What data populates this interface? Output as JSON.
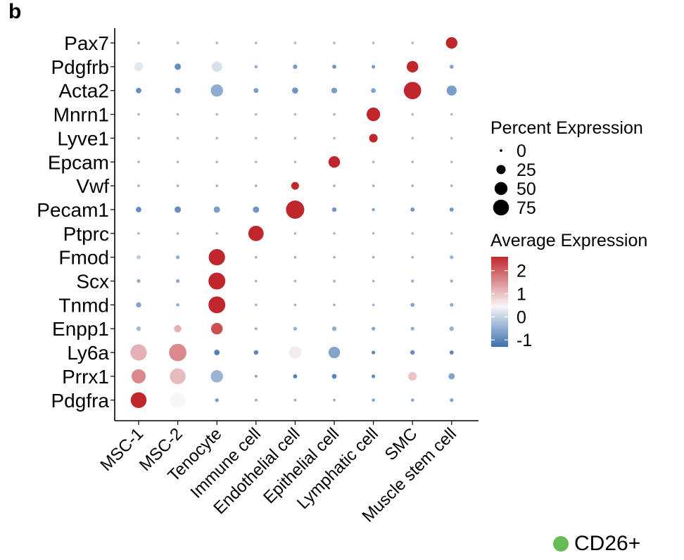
{
  "panel_label": "b",
  "chart_data": {
    "type": "dotplot",
    "genes": [
      "Pax7",
      "Pdgfrb",
      "Acta2",
      "Mnrn1",
      "Lyve1",
      "Epcam",
      "Vwf",
      "Pecam1",
      "Ptprc",
      "Fmod",
      "Scx",
      "Tnmd",
      "Enpp1",
      "Ly6a",
      "Prrx1",
      "Pdgfra"
    ],
    "cell_types": [
      "MSC-1",
      "MSC-2",
      "Tenocyte",
      "Immune cell",
      "Endothelial cell",
      "Epithelial cell",
      "Lymphatic cell",
      "SMC",
      "Muscle stem cell"
    ],
    "points": {
      "Pax7": [
        {
          "pct": 2,
          "avg": -0.3
        },
        {
          "pct": 2,
          "avg": -0.3
        },
        {
          "pct": 2,
          "avg": -0.3
        },
        {
          "pct": 2,
          "avg": -0.3
        },
        {
          "pct": 2,
          "avg": -0.3
        },
        {
          "pct": 2,
          "avg": -0.3
        },
        {
          "pct": 2,
          "avg": -0.3
        },
        {
          "pct": 2,
          "avg": -0.3
        },
        {
          "pct": 40,
          "avg": 2.6
        }
      ],
      "Pdgfrb": [
        {
          "pct": 22,
          "avg": 0.3
        },
        {
          "pct": 12,
          "avg": -0.9
        },
        {
          "pct": 32,
          "avg": 0.2
        },
        {
          "pct": 3,
          "avg": -0.5
        },
        {
          "pct": 6,
          "avg": -0.7
        },
        {
          "pct": 5,
          "avg": -0.8
        },
        {
          "pct": 4,
          "avg": -0.7
        },
        {
          "pct": 40,
          "avg": 2.6
        },
        {
          "pct": 5,
          "avg": -0.6
        }
      ],
      "Acta2": [
        {
          "pct": 9,
          "avg": -0.9
        },
        {
          "pct": 10,
          "avg": -0.8
        },
        {
          "pct": 45,
          "avg": -0.5
        },
        {
          "pct": 7,
          "avg": -0.7
        },
        {
          "pct": 11,
          "avg": -0.8
        },
        {
          "pct": 10,
          "avg": -0.7
        },
        {
          "pct": 7,
          "avg": -0.6
        },
        {
          "pct": 90,
          "avg": 2.6
        },
        {
          "pct": 30,
          "avg": -0.7
        }
      ],
      "Mnrn1": [
        {
          "pct": 2,
          "avg": -0.3
        },
        {
          "pct": 2,
          "avg": -0.3
        },
        {
          "pct": 2,
          "avg": -0.3
        },
        {
          "pct": 2,
          "avg": -0.3
        },
        {
          "pct": 2,
          "avg": -0.3
        },
        {
          "pct": 2,
          "avg": -0.3
        },
        {
          "pct": 55,
          "avg": 2.6
        },
        {
          "pct": 2,
          "avg": -0.3
        },
        {
          "pct": 2,
          "avg": -0.3
        }
      ],
      "Lyve1": [
        {
          "pct": 2,
          "avg": -0.3
        },
        {
          "pct": 2,
          "avg": -0.3
        },
        {
          "pct": 2,
          "avg": -0.3
        },
        {
          "pct": 2,
          "avg": -0.3
        },
        {
          "pct": 2,
          "avg": -0.3
        },
        {
          "pct": 2,
          "avg": -0.3
        },
        {
          "pct": 22,
          "avg": 2.6
        },
        {
          "pct": 2,
          "avg": -0.3
        },
        {
          "pct": 2,
          "avg": -0.3
        }
      ],
      "Epcam": [
        {
          "pct": 2,
          "avg": -0.3
        },
        {
          "pct": 2,
          "avg": -0.3
        },
        {
          "pct": 2,
          "avg": -0.3
        },
        {
          "pct": 2,
          "avg": -0.3
        },
        {
          "pct": 2,
          "avg": -0.3
        },
        {
          "pct": 40,
          "avg": 2.6
        },
        {
          "pct": 2,
          "avg": -0.3
        },
        {
          "pct": 2,
          "avg": -0.3
        },
        {
          "pct": 2,
          "avg": -0.3
        }
      ],
      "Vwf": [
        {
          "pct": 2,
          "avg": -0.4
        },
        {
          "pct": 2,
          "avg": -0.4
        },
        {
          "pct": 2,
          "avg": -0.4
        },
        {
          "pct": 2,
          "avg": -0.4
        },
        {
          "pct": 18,
          "avg": 2.6
        },
        {
          "pct": 2,
          "avg": -0.4
        },
        {
          "pct": 2,
          "avg": -0.4
        },
        {
          "pct": 2,
          "avg": -0.4
        },
        {
          "pct": 2,
          "avg": -0.4
        }
      ],
      "Pecam1": [
        {
          "pct": 9,
          "avg": -0.9
        },
        {
          "pct": 12,
          "avg": -0.9
        },
        {
          "pct": 12,
          "avg": -0.7
        },
        {
          "pct": 12,
          "avg": -0.8
        },
        {
          "pct": 100,
          "avg": 2.6
        },
        {
          "pct": 6,
          "avg": -0.8
        },
        {
          "pct": 3,
          "avg": -0.6
        },
        {
          "pct": 5,
          "avg": -0.8
        },
        {
          "pct": 5,
          "avg": -0.8
        }
      ],
      "Ptprc": [
        {
          "pct": 2,
          "avg": -0.3
        },
        {
          "pct": 2,
          "avg": -0.3
        },
        {
          "pct": 2,
          "avg": -0.3
        },
        {
          "pct": 70,
          "avg": 2.6
        },
        {
          "pct": 2,
          "avg": -0.3
        },
        {
          "pct": 2,
          "avg": -0.3
        },
        {
          "pct": 2,
          "avg": -0.3
        },
        {
          "pct": 2,
          "avg": -0.3
        },
        {
          "pct": 2,
          "avg": -0.3
        }
      ],
      "Fmod": [
        {
          "pct": 5,
          "avg": -0.1
        },
        {
          "pct": 4,
          "avg": -0.5
        },
        {
          "pct": 80,
          "avg": 2.6
        },
        {
          "pct": 2,
          "avg": -0.4
        },
        {
          "pct": 2,
          "avg": -0.4
        },
        {
          "pct": 2,
          "avg": -0.4
        },
        {
          "pct": 2,
          "avg": -0.4
        },
        {
          "pct": 2,
          "avg": -0.4
        },
        {
          "pct": 4,
          "avg": -0.4
        }
      ],
      "Scx": [
        {
          "pct": 4,
          "avg": -0.5
        },
        {
          "pct": 4,
          "avg": -0.5
        },
        {
          "pct": 85,
          "avg": 2.6
        },
        {
          "pct": 2,
          "avg": -0.4
        },
        {
          "pct": 2,
          "avg": -0.4
        },
        {
          "pct": 2,
          "avg": -0.4
        },
        {
          "pct": 2,
          "avg": -0.4
        },
        {
          "pct": 3,
          "avg": -0.4
        },
        {
          "pct": 3,
          "avg": -0.4
        }
      ],
      "Tnmd": [
        {
          "pct": 8,
          "avg": -0.6
        },
        {
          "pct": 3,
          "avg": -0.5
        },
        {
          "pct": 85,
          "avg": 2.6
        },
        {
          "pct": 2,
          "avg": -0.4
        },
        {
          "pct": 2,
          "avg": -0.4
        },
        {
          "pct": 2,
          "avg": -0.4
        },
        {
          "pct": 2,
          "avg": -0.4
        },
        {
          "pct": 5,
          "avg": -0.6
        },
        {
          "pct": 4,
          "avg": -0.5
        }
      ],
      "Enpp1": [
        {
          "pct": 6,
          "avg": -0.3
        },
        {
          "pct": 16,
          "avg": 1.2
        },
        {
          "pct": 40,
          "avg": 2.2
        },
        {
          "pct": 2,
          "avg": -0.5
        },
        {
          "pct": 4,
          "avg": -0.5
        },
        {
          "pct": 6,
          "avg": -0.5
        },
        {
          "pct": 4,
          "avg": -0.6
        },
        {
          "pct": 4,
          "avg": -0.5
        },
        {
          "pct": 6,
          "avg": -0.4
        }
      ],
      "Ly6a": [
        {
          "pct": 80,
          "avg": 1.2
        },
        {
          "pct": 90,
          "avg": 1.6
        },
        {
          "pct": 9,
          "avg": -1.1
        },
        {
          "pct": 6,
          "avg": -1.0
        },
        {
          "pct": 45,
          "avg": 0.6
        },
        {
          "pct": 40,
          "avg": -0.6
        },
        {
          "pct": 4,
          "avg": -1.0
        },
        {
          "pct": 6,
          "avg": -0.9
        },
        {
          "pct": 5,
          "avg": -1.0
        }
      ],
      "Prrx1": [
        {
          "pct": 60,
          "avg": 1.6
        },
        {
          "pct": 75,
          "avg": 1.1
        },
        {
          "pct": 45,
          "avg": -0.4
        },
        {
          "pct": 2,
          "avg": -0.7
        },
        {
          "pct": 5,
          "avg": -1.1
        },
        {
          "pct": 7,
          "avg": -1.0
        },
        {
          "pct": 4,
          "avg": -0.9
        },
        {
          "pct": 22,
          "avg": 1.0
        },
        {
          "pct": 12,
          "avg": -0.6
        }
      ],
      "Pdgfra": [
        {
          "pct": 75,
          "avg": 2.6
        },
        {
          "pct": 70,
          "avg": 0.5
        },
        {
          "pct": 4,
          "avg": -0.7
        },
        {
          "pct": 2,
          "avg": -0.5
        },
        {
          "pct": 2,
          "avg": -0.5
        },
        {
          "pct": 2,
          "avg": -0.5
        },
        {
          "pct": 3,
          "avg": -0.6
        },
        {
          "pct": 3,
          "avg": -0.6
        },
        {
          "pct": 4,
          "avg": -0.6
        }
      ]
    },
    "size_legend": {
      "title": "Percent Expression",
      "values": [
        0,
        25,
        50,
        75
      ]
    },
    "color_legend": {
      "title": "Average Expression",
      "ticks": [
        2,
        1,
        0,
        -1
      ],
      "range": [
        -1.3,
        2.6
      ],
      "low_color": "#3b6fb0",
      "mid_color": "#f7f7f7",
      "high_color": "#c0272d"
    }
  },
  "annotation": {
    "label": "CD26+",
    "color": "#66bb55"
  }
}
